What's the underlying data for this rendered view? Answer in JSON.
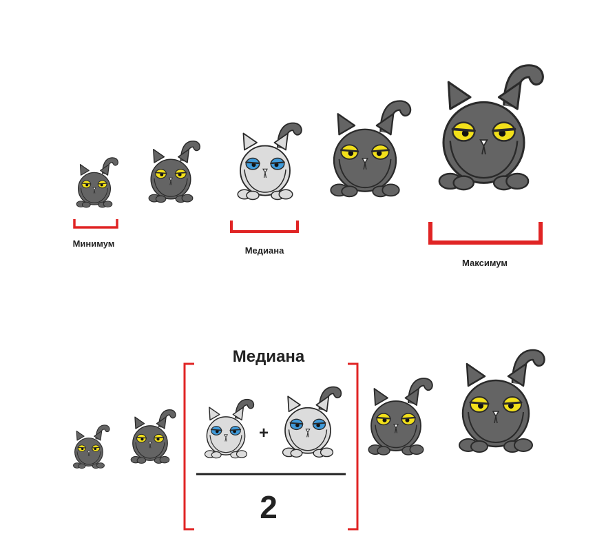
{
  "labels": {
    "minimum": "Минимум",
    "median": "Медиана",
    "maximum": "Максимум",
    "median_heading": "Медиана",
    "plus": "+",
    "divisor": "2"
  },
  "colors": {
    "dark_cat": "#646464",
    "light_cat": "#dcdcdc",
    "outline": "#2a2a2a",
    "yellow_eye": "#f2e01a",
    "blue_eye": "#3f9ad9",
    "bracket": "#e02424",
    "text": "#222222"
  },
  "top_row": {
    "cats": [
      {
        "name": "cat-1",
        "tone": "dark",
        "eyes": "yellow-eye"
      },
      {
        "name": "cat-2",
        "tone": "dark",
        "eyes": "yellow-eye"
      },
      {
        "name": "cat-3",
        "tone": "light",
        "eyes": "blue-eye"
      },
      {
        "name": "cat-4",
        "tone": "dark",
        "eyes": "yellow-eye"
      },
      {
        "name": "cat-5",
        "tone": "dark",
        "eyes": "yellow-eye"
      }
    ]
  },
  "bottom_row": {
    "cats": [
      {
        "name": "cat-1",
        "tone": "dark",
        "eyes": "yellow-eye"
      },
      {
        "name": "cat-2",
        "tone": "dark",
        "eyes": "yellow-eye"
      },
      {
        "name": "cat-3",
        "tone": "light",
        "eyes": "blue-eye"
      },
      {
        "name": "cat-4",
        "tone": "light",
        "eyes": "blue-eye"
      },
      {
        "name": "cat-5",
        "tone": "dark",
        "eyes": "yellow-eye"
      },
      {
        "name": "cat-6",
        "tone": "dark",
        "eyes": "yellow-eye"
      }
    ]
  }
}
